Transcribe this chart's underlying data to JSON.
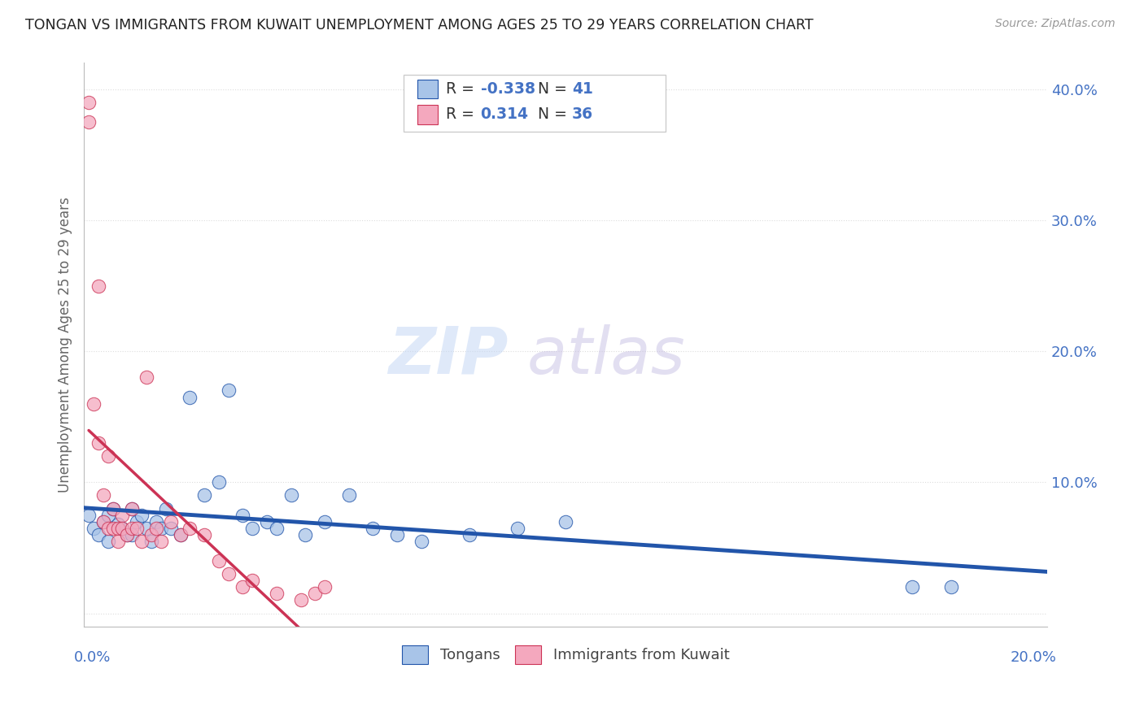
{
  "title": "TONGAN VS IMMIGRANTS FROM KUWAIT UNEMPLOYMENT AMONG AGES 25 TO 29 YEARS CORRELATION CHART",
  "source": "Source: ZipAtlas.com",
  "ylabel": "Unemployment Among Ages 25 to 29 years",
  "xlim": [
    0.0,
    0.2
  ],
  "ylim": [
    -0.01,
    0.42
  ],
  "yticks": [
    0.0,
    0.1,
    0.2,
    0.3,
    0.4
  ],
  "ytick_labels": [
    "",
    "10.0%",
    "20.0%",
    "30.0%",
    "40.0%"
  ],
  "R_tongan": -0.338,
  "N_tongan": 41,
  "R_kuwait": 0.314,
  "N_kuwait": 36,
  "blue_accent": "#4472c4",
  "pink_accent": "#e05070",
  "dot_blue": "#a8c4e8",
  "dot_pink": "#f4a8be",
  "trendline_blue": "#2255aa",
  "trendline_pink": "#cc3355",
  "watermark_zip_color": "#c8d8f0",
  "watermark_atlas_color": "#c8c0e0",
  "background_color": "#ffffff",
  "grid_color": "#dddddd",
  "tongan_x": [
    0.001,
    0.002,
    0.003,
    0.004,
    0.005,
    0.005,
    0.006,
    0.007,
    0.008,
    0.009,
    0.01,
    0.01,
    0.011,
    0.012,
    0.013,
    0.014,
    0.015,
    0.016,
    0.017,
    0.018,
    0.02,
    0.022,
    0.025,
    0.028,
    0.03,
    0.033,
    0.035,
    0.038,
    0.04,
    0.043,
    0.046,
    0.05,
    0.055,
    0.06,
    0.065,
    0.07,
    0.08,
    0.09,
    0.1,
    0.172,
    0.18
  ],
  "tongan_y": [
    0.075,
    0.065,
    0.06,
    0.07,
    0.075,
    0.055,
    0.08,
    0.068,
    0.065,
    0.06,
    0.06,
    0.08,
    0.07,
    0.075,
    0.065,
    0.055,
    0.07,
    0.065,
    0.08,
    0.065,
    0.06,
    0.165,
    0.09,
    0.1,
    0.17,
    0.075,
    0.065,
    0.07,
    0.065,
    0.09,
    0.06,
    0.07,
    0.09,
    0.065,
    0.06,
    0.055,
    0.06,
    0.065,
    0.07,
    0.02,
    0.02
  ],
  "kuwait_x": [
    0.001,
    0.001,
    0.002,
    0.003,
    0.003,
    0.004,
    0.004,
    0.005,
    0.005,
    0.006,
    0.006,
    0.007,
    0.007,
    0.008,
    0.008,
    0.009,
    0.01,
    0.01,
    0.011,
    0.012,
    0.013,
    0.014,
    0.015,
    0.016,
    0.018,
    0.02,
    0.022,
    0.025,
    0.028,
    0.03,
    0.033,
    0.035,
    0.04,
    0.045,
    0.048,
    0.05
  ],
  "kuwait_y": [
    0.39,
    0.375,
    0.16,
    0.25,
    0.13,
    0.09,
    0.07,
    0.065,
    0.12,
    0.065,
    0.08,
    0.065,
    0.055,
    0.075,
    0.065,
    0.06,
    0.065,
    0.08,
    0.065,
    0.055,
    0.18,
    0.06,
    0.065,
    0.055,
    0.07,
    0.06,
    0.065,
    0.06,
    0.04,
    0.03,
    0.02,
    0.025,
    0.015,
    0.01,
    0.015,
    0.02
  ]
}
